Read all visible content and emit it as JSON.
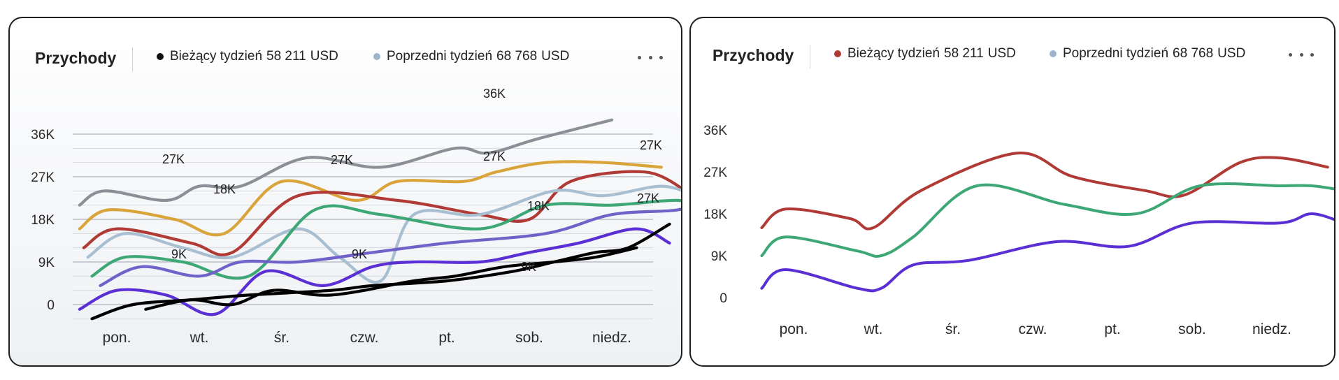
{
  "panels": [
    {
      "title": "Przychody",
      "legend": [
        {
          "label": "Bieżący tydzień",
          "amount": "58 211",
          "currency": "USD",
          "color": "#111111"
        },
        {
          "label": "Poprzedni tydzień",
          "amount": "68 768",
          "currency": "USD",
          "color": "#9db5cc"
        }
      ],
      "more_icon": "more-horizontal-icon"
    },
    {
      "title": "Przychody",
      "legend": [
        {
          "label": "Bieżący tydzień",
          "amount": "58 211",
          "currency": "USD",
          "color": "#b03a35"
        },
        {
          "label": "Poprzedni tydzień",
          "amount": "68 768",
          "currency": "USD",
          "color": "#9db5cc"
        }
      ],
      "more_icon": "more-horizontal-icon"
    }
  ],
  "chart_data": [
    {
      "type": "line",
      "title": "Przychody",
      "categories": [
        "pon.",
        "wt.",
        "śr.",
        "czw.",
        "pt.",
        "sob.",
        "niedz."
      ],
      "y_ticks": [
        "36K",
        "27K",
        "18K",
        "9K",
        "0"
      ],
      "ylim": [
        0,
        36
      ],
      "grid": true,
      "legend_position": "top",
      "annotations": [
        "27K",
        "18K",
        "27K",
        "9K",
        "9K",
        "27K",
        "36K",
        "18K",
        "9K",
        "27K",
        "27K"
      ],
      "series": [
        {
          "color": "#8c8f96",
          "x": [
            -0.45,
            -0.15,
            0.6,
            1.0,
            1.5,
            2.3,
            3.2,
            4.1,
            4.5,
            5.1,
            6.0
          ],
          "y": [
            21,
            24,
            22,
            25,
            25,
            31,
            29,
            33,
            32,
            35,
            39
          ]
        },
        {
          "color": "#d9a43a",
          "x": [
            -0.45,
            -0.1,
            0.7,
            1.3,
            2.0,
            2.9,
            3.4,
            4.2,
            4.6,
            5.2,
            5.9,
            6.6
          ],
          "y": [
            16,
            20,
            18,
            15,
            26,
            22,
            26,
            26,
            28,
            30,
            30,
            29
          ]
        },
        {
          "color": "#b03a35",
          "x": [
            -0.4,
            0.0,
            0.9,
            1.4,
            2.2,
            3.4,
            4.4,
            5.0,
            5.5,
            6.4,
            6.9
          ],
          "y": [
            12,
            16,
            13,
            11,
            23,
            22,
            19,
            18,
            26,
            28,
            24
          ]
        },
        {
          "color": "#a8bfd2",
          "x": [
            -0.35,
            0.1,
            0.8,
            1.4,
            2.2,
            2.7,
            3.2,
            3.6,
            4.4,
            5.3,
            5.9,
            6.6,
            7.0
          ],
          "y": [
            10,
            15,
            12,
            10,
            16,
            10,
            5,
            19,
            19,
            24,
            23,
            25,
            23
          ]
        },
        {
          "color": "#3da776",
          "x": [
            -0.3,
            0.1,
            0.8,
            1.6,
            2.4,
            3.2,
            4.4,
            5.2,
            6.0,
            6.8,
            7.0
          ],
          "y": [
            6,
            10,
            9,
            6,
            20,
            19,
            16,
            21,
            21,
            22,
            20
          ]
        },
        {
          "color": "#7162c9",
          "x": [
            -0.2,
            0.3,
            1.0,
            1.5,
            2.2,
            3.1,
            4.0,
            5.2,
            6.0,
            6.8,
            7.0
          ],
          "y": [
            4,
            8,
            6,
            9,
            9,
            11,
            13,
            15,
            19,
            20,
            22
          ]
        },
        {
          "color": "#5a2fd3",
          "x": [
            -0.45,
            0.0,
            0.6,
            1.2,
            1.8,
            2.5,
            3.1,
            3.6,
            4.4,
            5.0,
            5.6,
            6.3,
            6.7
          ],
          "y": [
            -1,
            3,
            2,
            -2,
            7,
            4,
            8,
            9,
            9,
            11,
            13,
            16,
            13
          ]
        },
        {
          "color": "#000000",
          "x": [
            -0.3,
            0.2,
            0.9,
            1.6,
            2.6,
            3.1,
            4.0,
            4.8,
            5.3,
            5.8,
            6.2,
            6.7
          ],
          "y": [
            -3,
            0,
            1,
            2,
            3,
            4,
            5,
            7,
            9,
            11,
            12,
            17
          ]
        },
        {
          "color": "#000000",
          "x": [
            0.35,
            0.9,
            1.4,
            1.9,
            2.6,
            3.6,
            4.1,
            4.7,
            5.3,
            5.8,
            6.3
          ],
          "y": [
            -1,
            1,
            0,
            3,
            2,
            5,
            6,
            8,
            9,
            10,
            12
          ]
        }
      ]
    },
    {
      "type": "line",
      "title": "Przychody",
      "categories": [
        "pon.",
        "wt.",
        "śr.",
        "czw.",
        "pt.",
        "sob.",
        "niedz."
      ],
      "y_ticks": [
        "36K",
        "27K",
        "18K",
        "9K",
        "0"
      ],
      "ylim": [
        0,
        36
      ],
      "grid": false,
      "legend_position": "top",
      "series": [
        {
          "color": "#b03a35",
          "x": [
            -0.4,
            -0.1,
            0.7,
            1.0,
            1.6,
            2.8,
            3.5,
            4.4,
            4.9,
            5.6,
            6.1,
            6.7
          ],
          "y": [
            15,
            19,
            17,
            15,
            23,
            31,
            26,
            23,
            22,
            29,
            30,
            28
          ]
        },
        {
          "color": "#3da776",
          "x": [
            -0.4,
            -0.1,
            0.8,
            1.1,
            1.5,
            2.3,
            3.4,
            4.3,
            5.1,
            6.1,
            6.5,
            6.9
          ],
          "y": [
            9,
            13,
            10,
            9,
            13,
            24,
            20,
            18,
            24,
            24,
            24,
            23
          ]
        },
        {
          "color": "#5a2fd3",
          "x": [
            -0.4,
            -0.1,
            0.8,
            1.1,
            1.5,
            2.2,
            3.3,
            4.2,
            5.0,
            6.1,
            6.5,
            6.9
          ],
          "y": [
            2,
            6,
            2,
            2,
            7,
            8,
            12,
            11,
            16,
            16,
            18,
            16
          ]
        }
      ]
    }
  ]
}
